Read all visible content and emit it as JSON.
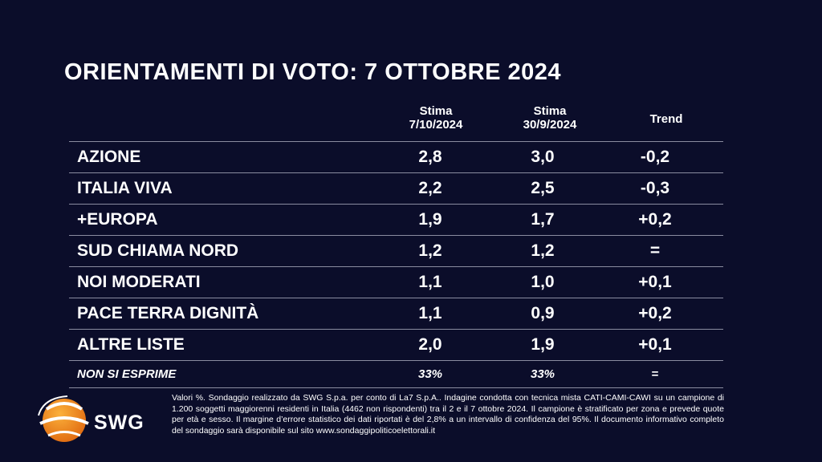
{
  "title": "ORIENTAMENTI DI VOTO: 7 OTTOBRE 2024",
  "columns": [
    {
      "line1": "Stima",
      "line2": "7/10/2024"
    },
    {
      "line1": "Stima",
      "line2": "30/9/2024"
    },
    {
      "line1": "Trend",
      "line2": ""
    }
  ],
  "rows": [
    {
      "name": "AZIONE",
      "v1": "2,8",
      "v2": "3,0",
      "trend": "-0,2"
    },
    {
      "name": "ITALIA VIVA",
      "v1": "2,2",
      "v2": "2,5",
      "trend": "-0,3"
    },
    {
      "name": "+EUROPA",
      "v1": "1,9",
      "v2": "1,7",
      "trend": "+0,2"
    },
    {
      "name": "SUD CHIAMA NORD",
      "v1": "1,2",
      "v2": "1,2",
      "trend": "="
    },
    {
      "name": "NOI MODERATI",
      "v1": "1,1",
      "v2": "1,0",
      "trend": "+0,1"
    },
    {
      "name": "PACE TERRA DIGNITÀ",
      "v1": "1,1",
      "v2": "0,9",
      "trend": "+0,2"
    },
    {
      "name": "ALTRE LISTE",
      "v1": "2,0",
      "v2": "1,9",
      "trend": "+0,1"
    }
  ],
  "non_si_esprime": {
    "name": "NON SI ESPRIME",
    "v1": "33%",
    "v2": "33%",
    "trend": "="
  },
  "logo": {
    "text": "SWG",
    "color": "#f18a1c"
  },
  "note": "Valori %. Sondaggio realizzato da SWG S.p.a. per conto di La7 S.p.A.. Indagine condotta con tecnica mista CATI-CAMI-CAWI su un campione di 1.200 soggetti maggiorenni residenti in Italia (4462 non rispondenti) tra il 2 e il 7 ottobre 2024. Il campione è stratificato per zona e prevede quote per età e sesso. Il margine d’errore statistico dei dati riportati è del 2,8% a un intervallo di confidenza del 95%. Il documento informativo completo del sondaggio sarà disponibile sul sito www.sondaggipoliticoelettorali.it"
}
